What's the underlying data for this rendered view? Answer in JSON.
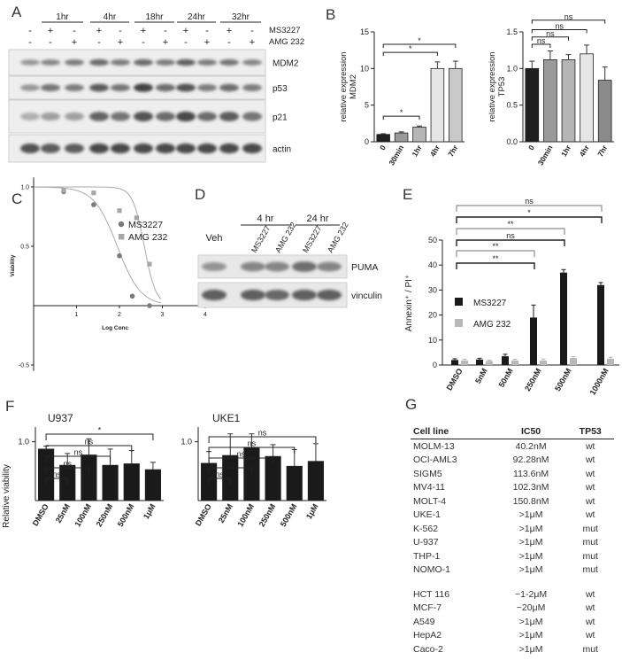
{
  "panels": {
    "A": {
      "letter": "A",
      "timepoints": [
        "1hr",
        "4hr",
        "18hr",
        "24hr",
        "32hr"
      ],
      "treatment_rows": [
        {
          "label": "MS3227",
          "signs": [
            "-",
            "+",
            "-",
            "+",
            "-",
            "+",
            "-",
            "+",
            "-",
            "+",
            "-"
          ]
        },
        {
          "label": "AMG 232",
          "signs": [
            "-",
            "-",
            "+",
            "-",
            "+",
            "-",
            "+",
            "-",
            "+",
            "-",
            "+"
          ]
        }
      ],
      "blots": [
        "MDM2",
        "p53",
        "p21",
        "actin"
      ]
    },
    "B": {
      "letter": "B",
      "charts": [
        {
          "ylabel": [
            "relative expression",
            "MDM2"
          ],
          "categories": [
            "0",
            "30min",
            "1hr",
            "4hr",
            "7hr"
          ],
          "values": [
            1.0,
            1.2,
            2.0,
            10.0,
            10.0
          ],
          "errors": [
            0.1,
            0.15,
            0.15,
            0.9,
            1.0
          ],
          "ylim": [
            0,
            15
          ],
          "yticks": [
            "0",
            "5",
            "10",
            "15"
          ],
          "colors": [
            "#1f1f1f",
            "#9a9a9a",
            "#b5b5b5",
            "#e6e6e6",
            "#c9c9c9"
          ],
          "sig": [
            "*",
            "*",
            "*"
          ]
        },
        {
          "ylabel": [
            "relative expression",
            "TP53"
          ],
          "categories": [
            "0",
            "30min",
            "1hr",
            "4hr",
            "7hr"
          ],
          "values": [
            1.0,
            1.12,
            1.12,
            1.2,
            0.84
          ],
          "errors": [
            0.1,
            0.12,
            0.07,
            0.12,
            0.18
          ],
          "ylim": [
            0,
            1.5
          ],
          "yticks": [
            "0.0",
            "0.5",
            "1.0",
            "1.5"
          ],
          "colors": [
            "#1f1f1f",
            "#9a9a9a",
            "#b5b5b5",
            "#e6e6e6",
            "#8a8a8a"
          ],
          "sig": [
            "ns",
            "ns",
            "ns",
            "ns"
          ]
        }
      ]
    },
    "C": {
      "letter": "C",
      "legend": [
        "MS3227",
        "AMG 232"
      ],
      "ylabel": "Viability",
      "xlabel": "Log Conc",
      "xticks": [
        "1",
        "2",
        "3",
        "4"
      ],
      "yticks": [
        "1.0",
        "0.5",
        "-0.5"
      ],
      "series": [
        {
          "name": "MS3227",
          "x": [
            0.7,
            1.4,
            2.0,
            2.3,
            2.7
          ],
          "y": [
            0.96,
            0.85,
            0.42,
            0.08,
            0.0
          ]
        },
        {
          "name": "AMG 232",
          "x": [
            0.7,
            1.4,
            2.0,
            2.4,
            2.7
          ],
          "y": [
            0.97,
            0.95,
            0.8,
            0.74,
            0.35
          ]
        }
      ]
    },
    "D": {
      "letter": "D",
      "veh": "Veh",
      "groups": [
        "4 hr",
        "24 hr"
      ],
      "lanes": [
        "MS3227",
        "AMG 232",
        "MS3227",
        "AMG 232"
      ],
      "blots": [
        "PUMA",
        "vinculin"
      ]
    },
    "E": {
      "letter": "E",
      "ylabel": "Annexin⁺ / PI⁺",
      "categories": [
        "DMSO",
        "5nM",
        "50nM",
        "250nM",
        "500nM",
        "1000nM"
      ],
      "series": [
        {
          "name": "MS3227",
          "values": [
            2.0,
            2.2,
            3.5,
            19.0,
            37.0,
            32.0
          ],
          "errors": [
            0.5,
            0.5,
            0.8,
            5.0,
            1.2,
            1.0
          ]
        },
        {
          "name": "AMG 232",
          "values": [
            1.8,
            1.6,
            1.8,
            1.8,
            2.8,
            2.5
          ],
          "errors": [
            0.5,
            0.4,
            0.5,
            0.6,
            0.6,
            0.6
          ]
        }
      ],
      "ylim": [
        0,
        50
      ],
      "yticks": [
        "0",
        "10",
        "20",
        "30",
        "40",
        "50"
      ],
      "sig": [
        "ns",
        "*",
        "**",
        "ns",
        "**",
        "**"
      ]
    },
    "F": {
      "letter": "F",
      "charts": [
        {
          "title": "U937",
          "categories": [
            "DMSO",
            "25nM",
            "100nM",
            "250nM",
            "500nM",
            "1μM"
          ],
          "values": [
            0.95,
            0.84,
            0.91,
            0.84,
            0.85,
            0.81
          ],
          "errors": [
            0.02,
            0.08,
            0.11,
            0.11,
            0.09,
            0.05
          ],
          "sig": [
            "*",
            "ns",
            "ns",
            "ns",
            "ns"
          ]
        },
        {
          "title": "UKE1",
          "categories": [
            "DMSO",
            "25nM",
            "100nM",
            "250nM",
            "500nM",
            "1μM"
          ],
          "values": [
            0.78,
            0.86,
            0.94,
            0.85,
            0.75,
            0.8
          ],
          "errors": [
            0.12,
            0.22,
            0.14,
            0.12,
            0.17,
            0.18
          ],
          "sig": [
            "ns",
            "ns",
            "ns",
            "ns",
            "ns"
          ]
        }
      ],
      "ylabel": "Relative viability",
      "ytick": "1.0"
    },
    "G": {
      "letter": "G",
      "headers": [
        "Cell line",
        "IC50",
        "TP53"
      ],
      "rows": [
        [
          "MOLM-13",
          "40.2nM",
          "wt"
        ],
        [
          "OCI-AML3",
          "92.28nM",
          "wt"
        ],
        [
          "SIGM5",
          "113.6nM",
          "wt"
        ],
        [
          "MV4-11",
          "102.3nM",
          "wt"
        ],
        [
          "MOLT-4",
          "150.8nM",
          "wt"
        ],
        [
          "UKE-1",
          ">1μM",
          "wt"
        ],
        [
          "K-562",
          ">1μM",
          "mut"
        ],
        [
          "U-937",
          ">1μM",
          "mut"
        ],
        [
          "THP-1",
          ">1μM",
          "mut"
        ],
        [
          "NOMO-1",
          ">1μM",
          "mut"
        ],
        [
          "HCT 116",
          "~1-2μM",
          "wt"
        ],
        [
          "MCF-7",
          "~20μM",
          "wt"
        ],
        [
          "A549",
          ">1μM",
          "wt"
        ],
        [
          "HepA2",
          ">1μM",
          "wt"
        ],
        [
          "Caco-2",
          ">1μM",
          "mut"
        ]
      ]
    }
  }
}
